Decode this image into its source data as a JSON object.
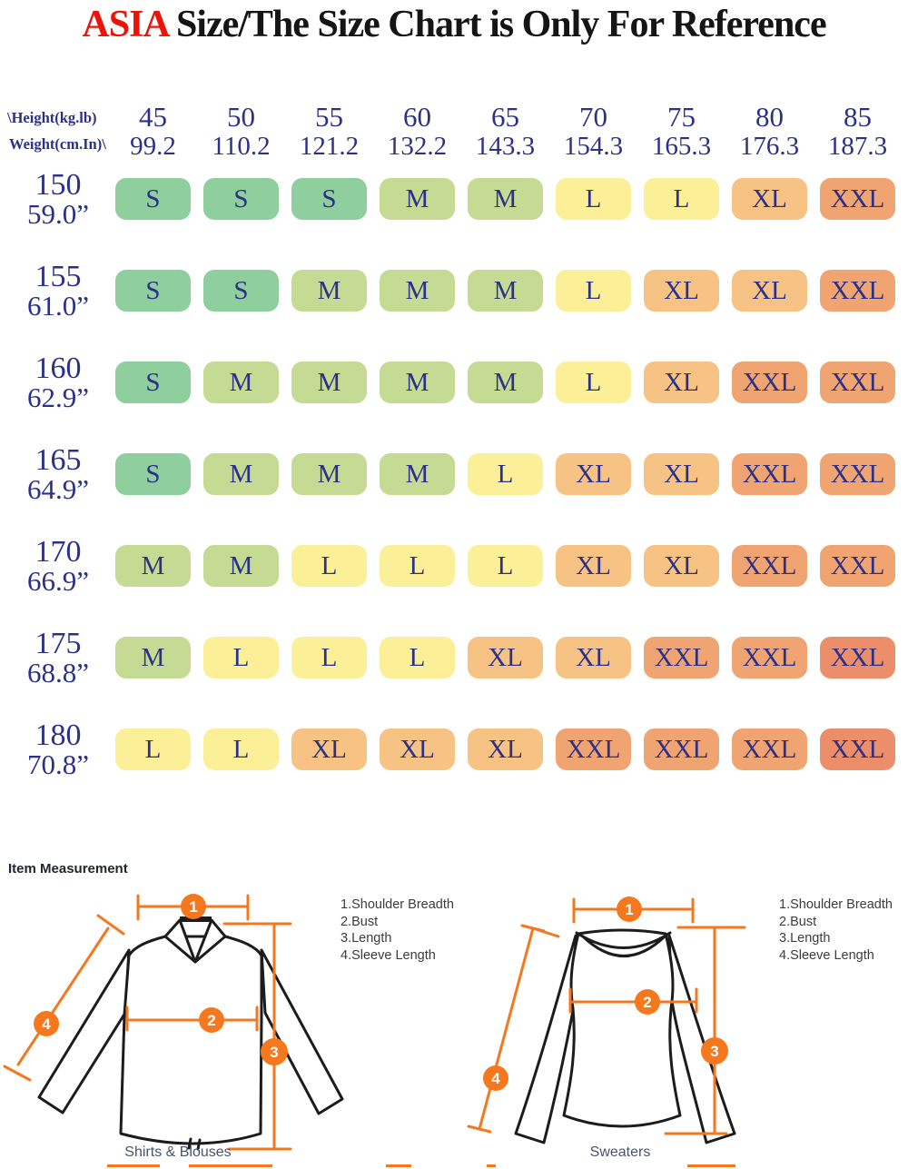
{
  "title": {
    "highlight": "ASIA",
    "rest": " Size/The Size Chart is Only For Reference",
    "highlight_color": "#ec1309"
  },
  "size_chart": {
    "axis_labels": {
      "line1": "\\Height(kg.lb)",
      "line2": "Weight(cm.In)\\"
    },
    "text_color": "#2b3188",
    "palette": {
      "s": "#8fce9d",
      "m": "#c5da92",
      "l": "#fbf098",
      "xl": "#f6c384",
      "xxl": "#f0a471",
      "xxl2": "#ec8e69"
    },
    "columns": [
      {
        "kg": "45",
        "lb": "99.2"
      },
      {
        "kg": "50",
        "lb": "110.2"
      },
      {
        "kg": "55",
        "lb": "121.2"
      },
      {
        "kg": "60",
        "lb": "132.2"
      },
      {
        "kg": "65",
        "lb": "143.3"
      },
      {
        "kg": "70",
        "lb": "154.3"
      },
      {
        "kg": "75",
        "lb": "165.3"
      },
      {
        "kg": "80",
        "lb": "176.3"
      },
      {
        "kg": "85",
        "lb": "187.3"
      }
    ],
    "rows": [
      {
        "cm": "150",
        "inch": "59.0”",
        "sizes": [
          "S",
          "S",
          "S",
          "M",
          "M",
          "L",
          "L",
          "XL",
          "XXL"
        ],
        "levels": [
          "s",
          "s",
          "s",
          "m",
          "m",
          "l",
          "l",
          "xl",
          "xxl"
        ]
      },
      {
        "cm": "155",
        "inch": "61.0”",
        "sizes": [
          "S",
          "S",
          "M",
          "M",
          "M",
          "L",
          "XL",
          "XL",
          "XXL"
        ],
        "levels": [
          "s",
          "s",
          "m",
          "m",
          "m",
          "l",
          "xl",
          "xl",
          "xxl"
        ]
      },
      {
        "cm": "160",
        "inch": "62.9”",
        "sizes": [
          "S",
          "M",
          "M",
          "M",
          "M",
          "L",
          "XL",
          "XXL",
          "XXL"
        ],
        "levels": [
          "s",
          "m",
          "m",
          "m",
          "m",
          "l",
          "xl",
          "xxl",
          "xxl"
        ]
      },
      {
        "cm": "165",
        "inch": "64.9”",
        "sizes": [
          "S",
          "M",
          "M",
          "M",
          "L",
          "XL",
          "XL",
          "XXL",
          "XXL"
        ],
        "levels": [
          "s",
          "m",
          "m",
          "m",
          "l",
          "xl",
          "xl",
          "xxl",
          "xxl"
        ]
      },
      {
        "cm": "170",
        "inch": "66.9”",
        "sizes": [
          "M",
          "M",
          "L",
          "L",
          "L",
          "XL",
          "XL",
          "XXL",
          "XXL"
        ],
        "levels": [
          "m",
          "m",
          "l",
          "l",
          "l",
          "xl",
          "xl",
          "xxl",
          "xxl"
        ]
      },
      {
        "cm": "175",
        "inch": "68.8”",
        "sizes": [
          "M",
          "L",
          "L",
          "L",
          "XL",
          "XL",
          "XXL",
          "XXL",
          "XXL"
        ],
        "levels": [
          "m",
          "l",
          "l",
          "l",
          "xl",
          "xl",
          "xxl",
          "xxl",
          "xxl2"
        ]
      },
      {
        "cm": "180",
        "inch": "70.8”",
        "sizes": [
          "L",
          "L",
          "XL",
          "XL",
          "XL",
          "XXL",
          "XXL",
          "XXL",
          "XXL"
        ],
        "levels": [
          "l",
          "l",
          "xl",
          "xl",
          "xl",
          "xxl",
          "xxl",
          "xxl",
          "xxl2"
        ]
      }
    ]
  },
  "measurement": {
    "heading": "Item Measurement",
    "line_color": "#f5781e",
    "legend": [
      "1.Shoulder Breadth",
      "2.Bust",
      "3.Length",
      "4.Sleeve Length"
    ],
    "markers": [
      "1",
      "2",
      "3",
      "4"
    ],
    "diagrams": [
      {
        "caption": "Shirts & Blouses"
      },
      {
        "caption": "Sweaters"
      }
    ]
  },
  "chart_data": {
    "type": "heatmap",
    "title": "ASIA Size/The Size Chart is Only For Reference",
    "xlabel": "Weight (kg / lb)",
    "ylabel": "Height (cm / in)",
    "x_ticks_kg": [
      45,
      50,
      55,
      60,
      65,
      70,
      75,
      80,
      85
    ],
    "x_ticks_lb": [
      99.2,
      110.2,
      121.2,
      132.2,
      143.3,
      154.3,
      165.3,
      176.3,
      187.3
    ],
    "y_ticks_cm": [
      150,
      155,
      160,
      165,
      170,
      175,
      180
    ],
    "y_ticks_in": [
      59.0,
      61.0,
      62.9,
      64.9,
      66.9,
      68.8,
      70.8
    ],
    "values": [
      [
        "S",
        "S",
        "S",
        "M",
        "M",
        "L",
        "L",
        "XL",
        "XXL"
      ],
      [
        "S",
        "S",
        "M",
        "M",
        "M",
        "L",
        "XL",
        "XL",
        "XXL"
      ],
      [
        "S",
        "M",
        "M",
        "M",
        "M",
        "L",
        "XL",
        "XXL",
        "XXL"
      ],
      [
        "S",
        "M",
        "M",
        "M",
        "L",
        "XL",
        "XL",
        "XXL",
        "XXL"
      ],
      [
        "M",
        "M",
        "L",
        "L",
        "L",
        "XL",
        "XL",
        "XXL",
        "XXL"
      ],
      [
        "M",
        "L",
        "L",
        "L",
        "XL",
        "XL",
        "XXL",
        "XXL",
        "XXL"
      ],
      [
        "L",
        "L",
        "XL",
        "XL",
        "XL",
        "XXL",
        "XXL",
        "XXL",
        "XXL"
      ]
    ],
    "legend_position": "none",
    "grid": false
  }
}
